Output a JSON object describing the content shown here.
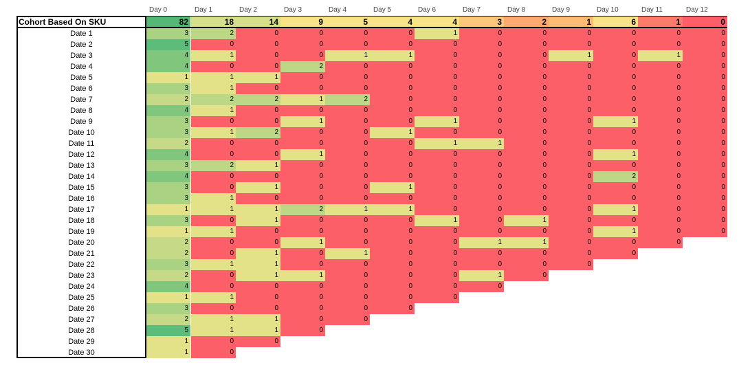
{
  "sheet": {
    "header_label": "Cohort Based On SKU",
    "days": [
      "Day 0",
      "Day 1",
      "Day 2",
      "Day 3",
      "Day 4",
      "Day 5",
      "Day 6",
      "Day 7",
      "Day 8",
      "Day 9",
      "Day 10",
      "Day 11",
      "Day 12"
    ],
    "totals": [
      82,
      18,
      14,
      9,
      5,
      4,
      4,
      3,
      2,
      1,
      6,
      1,
      0
    ],
    "rows": [
      {
        "label": "Date 1",
        "values": [
          3,
          2,
          0,
          0,
          0,
          0,
          1,
          0,
          0,
          0,
          0,
          0,
          0
        ]
      },
      {
        "label": "Date 2",
        "values": [
          5,
          0,
          0,
          0,
          0,
          0,
          0,
          0,
          0,
          0,
          0,
          0,
          0
        ]
      },
      {
        "label": "Date 3",
        "values": [
          4,
          1,
          0,
          0,
          1,
          1,
          0,
          0,
          0,
          1,
          0,
          1,
          0
        ]
      },
      {
        "label": "Date 4",
        "values": [
          4,
          0,
          0,
          2,
          0,
          0,
          0,
          0,
          0,
          0,
          0,
          0,
          0
        ]
      },
      {
        "label": "Date 5",
        "values": [
          1,
          1,
          1,
          0,
          0,
          0,
          0,
          0,
          0,
          0,
          0,
          0,
          0
        ]
      },
      {
        "label": "Date 6",
        "values": [
          3,
          1,
          0,
          0,
          0,
          0,
          0,
          0,
          0,
          0,
          0,
          0,
          0
        ]
      },
      {
        "label": "Date 7",
        "values": [
          2,
          2,
          2,
          1,
          2,
          0,
          0,
          0,
          0,
          0,
          0,
          0,
          0
        ]
      },
      {
        "label": "Date 8",
        "values": [
          4,
          1,
          0,
          0,
          0,
          0,
          0,
          0,
          0,
          0,
          0,
          0,
          0
        ]
      },
      {
        "label": "Date 9",
        "values": [
          3,
          0,
          0,
          1,
          0,
          0,
          1,
          0,
          0,
          0,
          1,
          0,
          0
        ]
      },
      {
        "label": "Date 10",
        "values": [
          3,
          1,
          2,
          0,
          0,
          1,
          0,
          0,
          0,
          0,
          0,
          0,
          0
        ]
      },
      {
        "label": "Date 11",
        "values": [
          2,
          0,
          0,
          0,
          0,
          0,
          1,
          1,
          0,
          0,
          0,
          0,
          0
        ]
      },
      {
        "label": "Date 12",
        "values": [
          4,
          0,
          0,
          1,
          0,
          0,
          0,
          0,
          0,
          0,
          1,
          0,
          0
        ]
      },
      {
        "label": "Date 13",
        "values": [
          3,
          2,
          1,
          0,
          0,
          0,
          0,
          0,
          0,
          0,
          0,
          0,
          0
        ]
      },
      {
        "label": "Date 14",
        "values": [
          4,
          0,
          0,
          0,
          0,
          0,
          0,
          0,
          0,
          0,
          2,
          0,
          0
        ]
      },
      {
        "label": "Date 15",
        "values": [
          3,
          0,
          1,
          0,
          0,
          1,
          0,
          0,
          0,
          0,
          0,
          0,
          0
        ]
      },
      {
        "label": "Date 16",
        "values": [
          3,
          1,
          0,
          0,
          0,
          0,
          0,
          0,
          0,
          0,
          0,
          0,
          0
        ]
      },
      {
        "label": "Date 17",
        "values": [
          1,
          1,
          1,
          2,
          1,
          1,
          0,
          0,
          0,
          0,
          1,
          0,
          0
        ]
      },
      {
        "label": "Date 18",
        "values": [
          3,
          0,
          1,
          0,
          0,
          0,
          1,
          0,
          1,
          0,
          0,
          0,
          0
        ]
      },
      {
        "label": "Date 19",
        "values": [
          1,
          1,
          0,
          0,
          0,
          0,
          0,
          0,
          0,
          0,
          1,
          0,
          0
        ]
      },
      {
        "label": "Date 20",
        "values": [
          2,
          0,
          0,
          1,
          0,
          0,
          0,
          1,
          1,
          0,
          0,
          0
        ]
      },
      {
        "label": "Date 21",
        "values": [
          2,
          0,
          1,
          0,
          1,
          0,
          0,
          0,
          0,
          0,
          0
        ]
      },
      {
        "label": "Date 22",
        "values": [
          3,
          1,
          1,
          0,
          0,
          0,
          0,
          0,
          0,
          0
        ]
      },
      {
        "label": "Date 23",
        "values": [
          2,
          0,
          1,
          1,
          0,
          0,
          0,
          1,
          0
        ]
      },
      {
        "label": "Date 24",
        "values": [
          4,
          0,
          0,
          0,
          0,
          0,
          0,
          0
        ]
      },
      {
        "label": "Date 25",
        "values": [
          1,
          1,
          0,
          0,
          0,
          0,
          0
        ]
      },
      {
        "label": "Date 26",
        "values": [
          3,
          0,
          0,
          0,
          0,
          0
        ]
      },
      {
        "label": "Date 27",
        "values": [
          2,
          1,
          1,
          0,
          0
        ]
      },
      {
        "label": "Date 28",
        "values": [
          5,
          1,
          1,
          0
        ]
      },
      {
        "label": "Date 29",
        "values": [
          1,
          0,
          0
        ]
      },
      {
        "label": "Date 30",
        "values": [
          1,
          0
        ]
      }
    ],
    "colors": {
      "red": "#fd5f68",
      "yellow": "#e3e289",
      "green_mid": "#a9d283",
      "green": "#80c67d",
      "green_dark": "#5cbd7b",
      "total_orange": "#fda970",
      "total_orange_light": "#fcc97a",
      "total_yellow": "#f8e386",
      "total_green": "#54b775",
      "border": "#000000"
    }
  }
}
